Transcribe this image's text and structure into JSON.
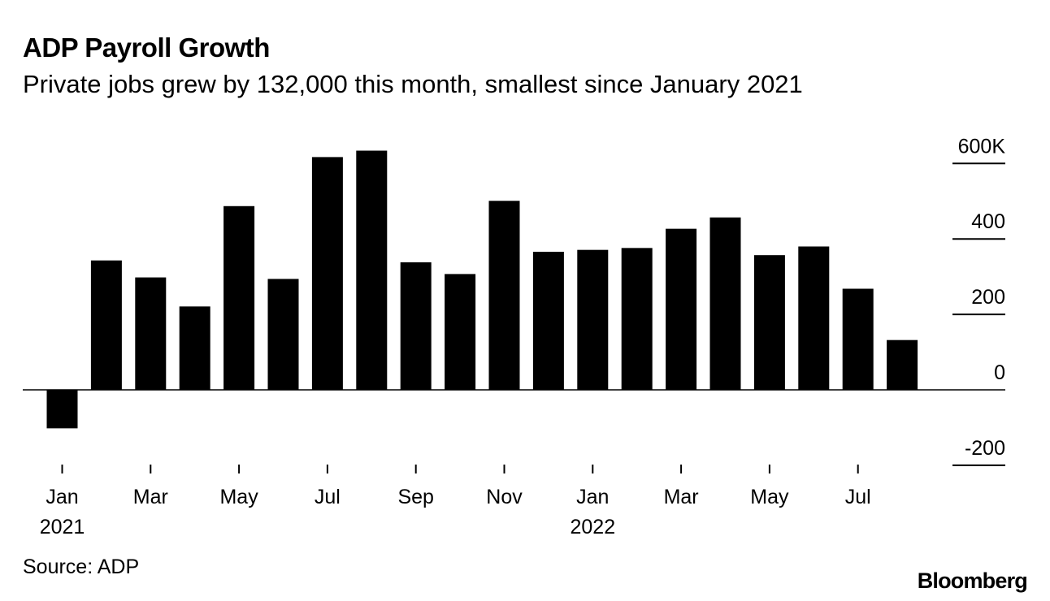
{
  "title": "ADP Payroll Growth",
  "subtitle": "Private jobs grew by 132,000 this month, smallest since January 2021",
  "source": "Source: ADP",
  "brand": "Bloomberg",
  "colors": {
    "bar": "#000000",
    "axis": "#000000",
    "background": "#ffffff"
  },
  "chart_data": {
    "type": "bar",
    "title": "ADP Payroll Growth",
    "subtitle": "Private jobs grew by 132,000 this month, smallest since January 2021",
    "xlabel": "",
    "ylabel": "",
    "ylim": [
      -200,
      600
    ],
    "grid": false,
    "months": [
      "Jan 2021",
      "Feb 2021",
      "Mar 2021",
      "Apr 2021",
      "May 2021",
      "Jun 2021",
      "Jul 2021",
      "Aug 2021",
      "Sep 2021",
      "Oct 2021",
      "Nov 2021",
      "Dec 2021",
      "Jan 2022",
      "Feb 2022",
      "Mar 2022",
      "Apr 2022",
      "May 2022",
      "Jun 2022",
      "Jul 2022",
      "Aug 2022"
    ],
    "values": [
      -102,
      343,
      298,
      221,
      487,
      294,
      617,
      634,
      338,
      307,
      501,
      366,
      371,
      376,
      427,
      457,
      357,
      380,
      268,
      132
    ],
    "y_ticks": [
      {
        "value": 600,
        "label": "600K"
      },
      {
        "value": 400,
        "label": "400"
      },
      {
        "value": 200,
        "label": "200"
      },
      {
        "value": 0,
        "label": "0"
      },
      {
        "value": -200,
        "label": "-200"
      }
    ],
    "x_ticks": [
      {
        "index": 0,
        "label": "Jan",
        "year": "2021"
      },
      {
        "index": 2,
        "label": "Mar"
      },
      {
        "index": 4,
        "label": "May"
      },
      {
        "index": 6,
        "label": "Jul"
      },
      {
        "index": 8,
        "label": "Sep"
      },
      {
        "index": 10,
        "label": "Nov"
      },
      {
        "index": 12,
        "label": "Jan",
        "year": "2022"
      },
      {
        "index": 14,
        "label": "Mar"
      },
      {
        "index": 16,
        "label": "May"
      },
      {
        "index": 18,
        "label": "Jul"
      }
    ]
  }
}
